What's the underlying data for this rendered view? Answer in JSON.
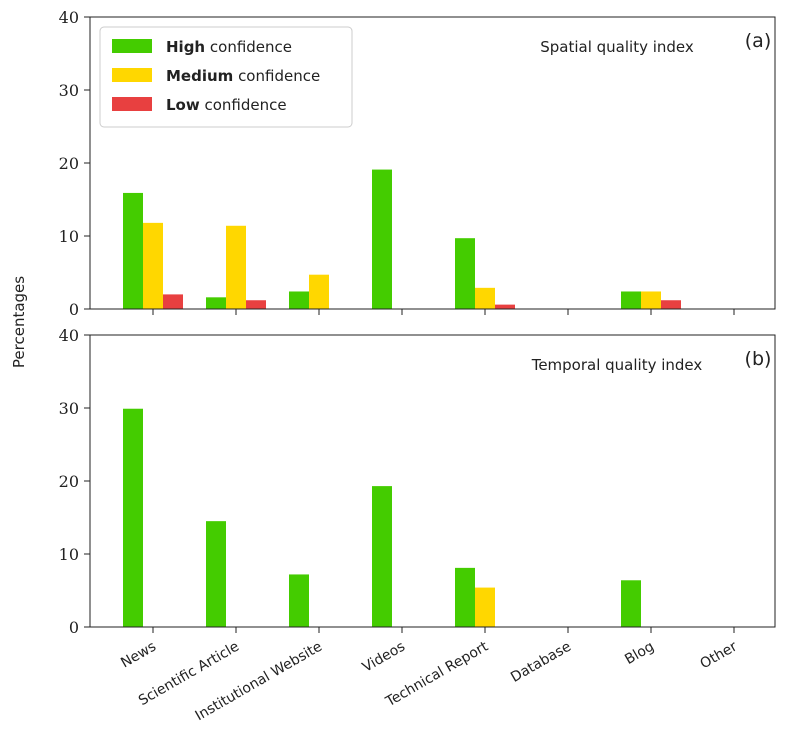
{
  "chart_data": {
    "type": "bar",
    "ylabel": "Percentages",
    "categories": [
      "News",
      "Scientific Article",
      "Institutional Website",
      "Videos",
      "Technical Report",
      "Database",
      "Blog",
      "Other"
    ],
    "ylim": [
      0,
      40
    ],
    "yticks": [
      "0",
      "10",
      "20",
      "30",
      "40"
    ],
    "colors": {
      "high": "#44cc00",
      "medium": "#ffd700",
      "low": "#e84040"
    },
    "legend": {
      "placement": "top-left",
      "items": [
        {
          "key": "high",
          "bold": "High",
          "rest": " confidence"
        },
        {
          "key": "medium",
          "bold": "Medium",
          "rest": " confidence"
        },
        {
          "key": "low",
          "bold": "Low",
          "rest": " confidence"
        }
      ]
    },
    "panels": [
      {
        "id": "a",
        "tag": "(a)",
        "title": "Spatial quality index",
        "series": [
          {
            "key": "high",
            "values": [
              15.9,
              1.6,
              2.4,
              19.1,
              9.7,
              0,
              2.4,
              0
            ]
          },
          {
            "key": "medium",
            "values": [
              11.8,
              11.4,
              4.7,
              0,
              2.9,
              0,
              2.4,
              0
            ]
          },
          {
            "key": "low",
            "values": [
              2.0,
              1.2,
              0,
              0,
              0.6,
              0,
              1.2,
              0
            ]
          }
        ]
      },
      {
        "id": "b",
        "tag": "(b)",
        "title": "Temporal quality index",
        "series": [
          {
            "key": "high",
            "values": [
              29.9,
              14.5,
              7.2,
              19.3,
              8.1,
              0,
              6.4,
              0
            ]
          },
          {
            "key": "medium",
            "values": [
              0,
              0,
              0,
              0,
              5.4,
              0,
              0,
              0
            ]
          },
          {
            "key": "low",
            "values": [
              0,
              0,
              0,
              0,
              0,
              0,
              0,
              0
            ]
          }
        ]
      }
    ]
  }
}
